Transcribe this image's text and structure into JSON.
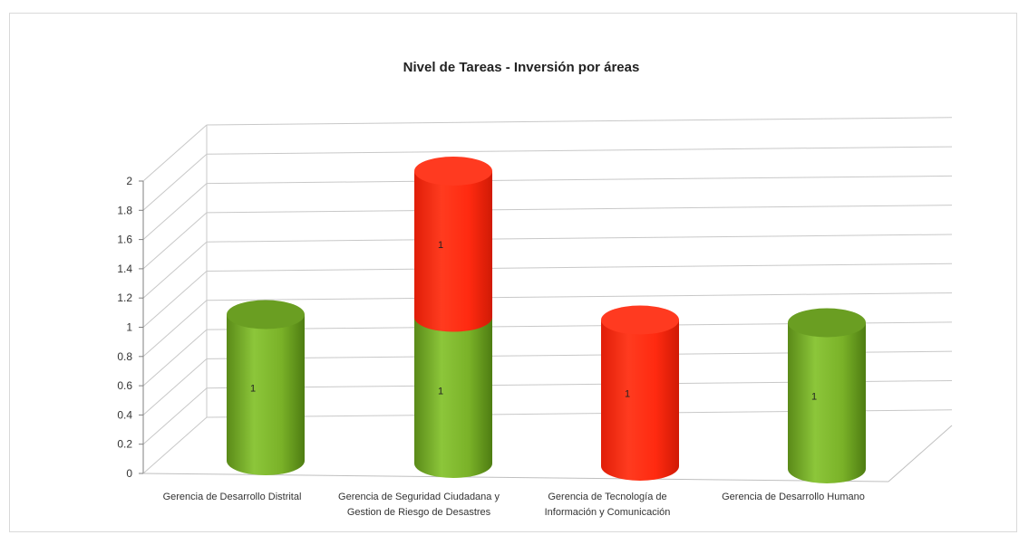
{
  "chart_data": {
    "type": "bar",
    "style": "3d-cylinder-stacked",
    "title": "Nivel de Tareas - Inversión por áreas",
    "categories": [
      [
        "Gerencia de Desarrollo Distrital"
      ],
      [
        "Gerencia de Seguridad Ciudadana y",
        "Gestion de Riesgo de Desastres"
      ],
      [
        "Gerencia de Tecnología de",
        "Información y Comunicación"
      ],
      [
        "Gerencia de Desarrollo Humano"
      ]
    ],
    "series": [
      {
        "color": "#7fb82a",
        "values": [
          1,
          1,
          0,
          1
        ]
      },
      {
        "color": "#ff2a10",
        "values": [
          0,
          1,
          1,
          0
        ]
      }
    ],
    "data_labels": [
      "1",
      "1",
      "1",
      "1",
      "1"
    ],
    "ylim": [
      0,
      2
    ],
    "yticks": [
      "0",
      "0.2",
      "0.4",
      "0.6",
      "0.8",
      "1",
      "1.2",
      "1.4",
      "1.6",
      "1.8",
      "2"
    ],
    "grid": true,
    "legend": "none"
  }
}
